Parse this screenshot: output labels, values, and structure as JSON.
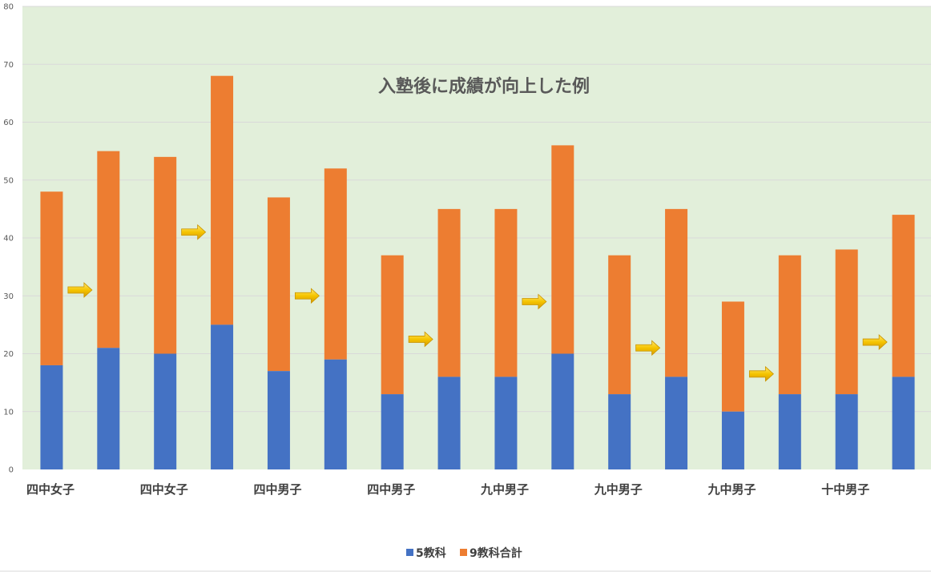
{
  "chart_data": {
    "type": "bar",
    "stacked": true,
    "title": "入塾後に成績が向上した例",
    "categories": [
      "四中女子",
      "四中女子",
      "四中男子",
      "四中男子",
      "九中男子",
      "九中男子",
      "九中男子",
      "十中男子"
    ],
    "pairs": [
      {
        "before": {
          "s5": 18,
          "s9": 48
        },
        "after": {
          "s5": 21,
          "s9": 55
        }
      },
      {
        "before": {
          "s5": 20,
          "s9": 54
        },
        "after": {
          "s5": 25,
          "s9": 68
        }
      },
      {
        "before": {
          "s5": 17,
          "s9": 47
        },
        "after": {
          "s5": 19,
          "s9": 52
        }
      },
      {
        "before": {
          "s5": 13,
          "s9": 37
        },
        "after": {
          "s5": 16,
          "s9": 45
        }
      },
      {
        "before": {
          "s5": 16,
          "s9": 45
        },
        "after": {
          "s5": 20,
          "s9": 56
        }
      },
      {
        "before": {
          "s5": 13,
          "s9": 37
        },
        "after": {
          "s5": 16,
          "s9": 45
        }
      },
      {
        "before": {
          "s5": 10,
          "s9": 29
        },
        "after": {
          "s5": 13,
          "s9": 37
        }
      },
      {
        "before": {
          "s5": 13,
          "s9": 38
        },
        "after": {
          "s5": 16,
          "s9": 44
        }
      }
    ],
    "series": [
      {
        "name": "5教科",
        "color": "#4472c4"
      },
      {
        "name": "9教科合計",
        "color": "#ed7d31"
      }
    ],
    "arrow_levels": [
      31,
      41,
      30,
      22.5,
      29,
      21,
      16.5,
      22
    ],
    "ylim": [
      0,
      80
    ],
    "yticks": [
      0,
      10,
      20,
      30,
      40,
      50,
      60,
      70,
      80
    ],
    "plot_background": "#e2efda",
    "gridline_color": "#d9d9d9",
    "arrow_color": "#f5c400",
    "legend_position": "bottom",
    "xlabel": "",
    "ylabel": ""
  }
}
